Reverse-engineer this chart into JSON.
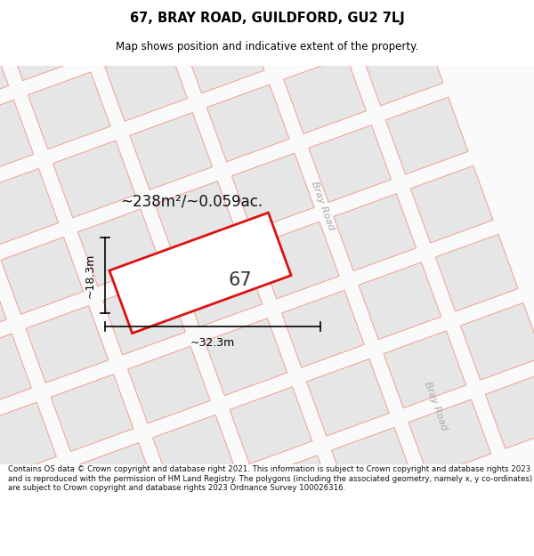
{
  "title_line1": "67, BRAY ROAD, GUILDFORD, GU2 7LJ",
  "title_line2": "Map shows position and indicative extent of the property.",
  "footer_text": "Contains OS data © Crown copyright and database right 2021. This information is subject to Crown copyright and database rights 2023 and is reproduced with the permission of HM Land Registry. The polygons (including the associated geometry, namely x, y co-ordinates) are subject to Crown copyright and database rights 2023 Ordnance Survey 100026316.",
  "map_bg": "#f9f9f9",
  "block_color": "#e8e8e8",
  "road_line_color": "#f0a898",
  "plot_outline_color": "#dd1111",
  "label_67": "67",
  "area_text": "~238m²/~0.059ac.",
  "dim_width": "~32.3m",
  "dim_height": "~18.3m",
  "bray_road_label1": "Bray Road",
  "bray_road_label2": "Bray Road"
}
